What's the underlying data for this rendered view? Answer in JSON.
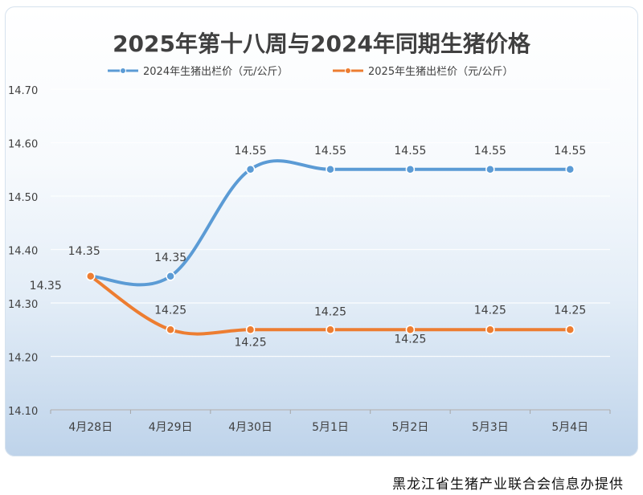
{
  "chart_data": {
    "type": "line",
    "title": "2025年第十八周与2024年同期生猪价格",
    "categories": [
      "4月28日",
      "4月29日",
      "4月30日",
      "5月1日",
      "5月2日",
      "5月3日",
      "5月4日"
    ],
    "series": [
      {
        "name": "2024年生猪出栏价（元/公斤）",
        "color": "#5b9bd5",
        "values": [
          14.35,
          14.35,
          14.55,
          14.55,
          14.55,
          14.55,
          14.55
        ],
        "labels": [
          "14.35",
          "14.35",
          "14.55",
          "14.55",
          "14.55",
          "14.55",
          "14.55"
        ]
      },
      {
        "name": "2025年生猪出栏价（元/公斤）",
        "color": "#ed7d31",
        "values": [
          14.35,
          14.25,
          14.25,
          14.25,
          14.25,
          14.25,
          14.25
        ],
        "labels": [
          "14.35",
          "14.25",
          "14.25",
          "14.25",
          "14.25",
          "14.25",
          "14.25"
        ]
      }
    ],
    "yticks": [
      "14.70",
      "14.60",
      "14.50",
      "14.40",
      "14.30",
      "14.20",
      "14.10"
    ],
    "ylim": [
      14.1,
      14.7
    ],
    "grid": true,
    "legend": "top"
  },
  "footer": "黑龙江省生猪产业联合会信息办提供"
}
